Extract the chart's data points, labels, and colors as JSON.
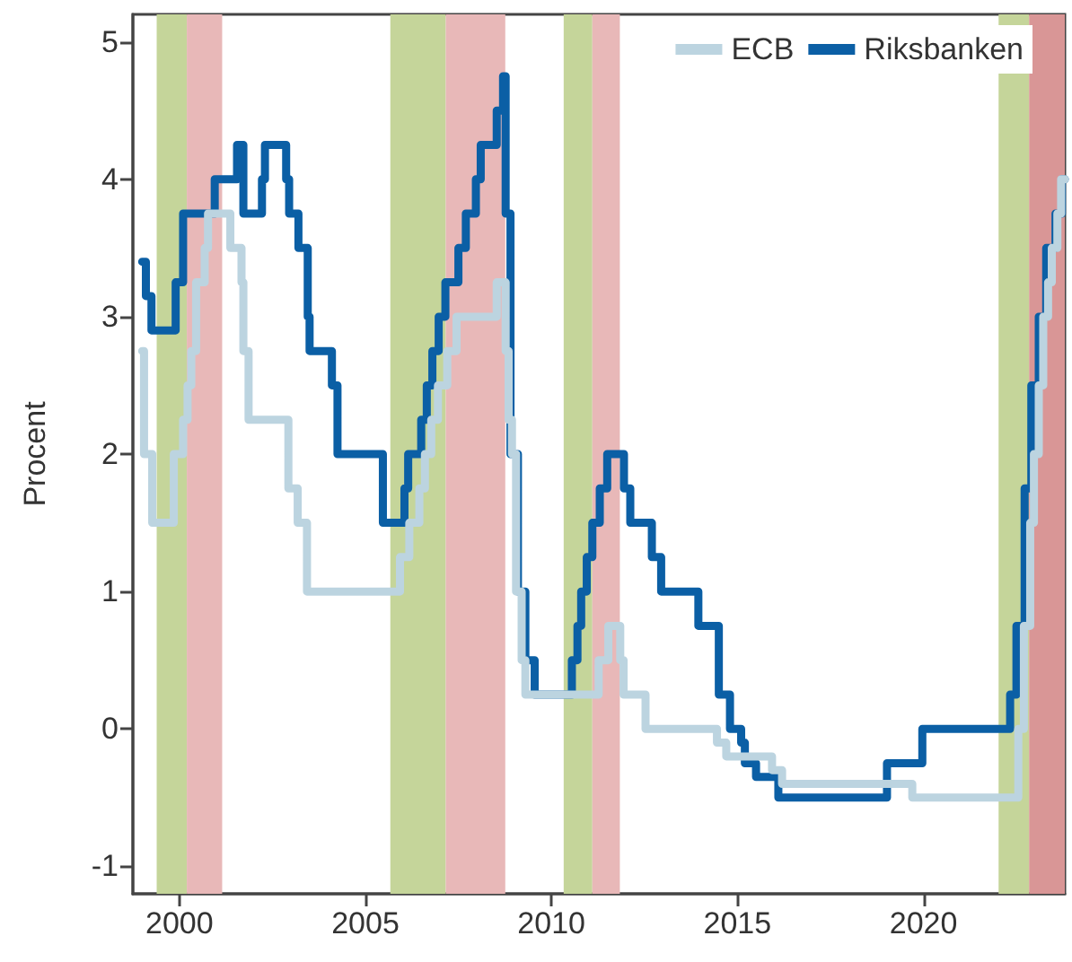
{
  "chart_data": {
    "type": "step",
    "ylabel": "Procent",
    "xlim": [
      1998.75,
      2023.8
    ],
    "xticks": [
      2000,
      2005,
      2010,
      2015,
      2020
    ],
    "ylim": [
      -1.2,
      5.2
    ],
    "yticks": [
      -1,
      0,
      1,
      2,
      3,
      4,
      5
    ],
    "grid": false,
    "legend": "top right",
    "bands": [
      {
        "axis": "x",
        "from": 1999.39,
        "to": 2000.2,
        "color": "#c5d59a"
      },
      {
        "axis": "x",
        "from": 2000.2,
        "to": 2001.15,
        "color": "#e8b8b8"
      },
      {
        "axis": "x",
        "from": 2005.67,
        "to": 2007.16,
        "color": "#c5d59a"
      },
      {
        "axis": "x",
        "from": 2007.16,
        "to": 2008.76,
        "color": "#e8b8b8"
      },
      {
        "axis": "x",
        "from": 2010.33,
        "to": 2011.1,
        "color": "#c5d59a"
      },
      {
        "axis": "x",
        "from": 2011.1,
        "to": 2011.84,
        "color": "#e8b8b8"
      },
      {
        "axis": "x",
        "from": 2022.02,
        "to": 2022.84,
        "color": "#c5d59a"
      },
      {
        "axis": "x",
        "from": 2022.84,
        "to": 2023.8,
        "color": "#d99696"
      }
    ],
    "series": [
      {
        "name": "ECB",
        "color": "#bcd4e0",
        "x": [
          1999.0,
          1999.05,
          1999.27,
          1999.85,
          2000.1,
          2000.22,
          2000.32,
          2000.45,
          2000.68,
          2000.77,
          2001.37,
          2001.67,
          2001.72,
          2001.86,
          2002.93,
          2003.18,
          2003.43,
          2005.93,
          2006.18,
          2006.45,
          2006.6,
          2006.77,
          2006.95,
          2007.2,
          2007.45,
          2008.53,
          2008.77,
          2008.85,
          2008.94,
          2009.05,
          2009.2,
          2009.3,
          2011.27,
          2011.53,
          2011.85,
          2011.94,
          2012.53,
          2014.45,
          2014.7,
          2015.93,
          2016.2,
          2019.7,
          2022.55,
          2022.7,
          2022.87,
          2022.97,
          2023.1,
          2023.22,
          2023.35,
          2023.45,
          2023.6,
          2023.7,
          2023.8
        ],
        "values": [
          2.75,
          2.0,
          1.5,
          2.0,
          2.25,
          2.5,
          2.75,
          3.25,
          3.5,
          3.75,
          3.5,
          3.25,
          2.75,
          2.25,
          1.75,
          1.5,
          1.0,
          1.25,
          1.5,
          1.75,
          2.0,
          2.25,
          2.5,
          2.75,
          3.0,
          3.25,
          2.75,
          2.25,
          2.0,
          1.0,
          0.5,
          0.25,
          0.5,
          0.75,
          0.5,
          0.25,
          0.0,
          -0.1,
          -0.2,
          -0.3,
          -0.4,
          -0.5,
          0.0,
          0.75,
          1.5,
          2.0,
          2.5,
          3.0,
          3.25,
          3.5,
          3.75,
          4.0,
          4.0
        ]
      },
      {
        "name": "Riksbanken",
        "color": "#0b5fa5",
        "x": [
          1999.0,
          1999.1,
          1999.25,
          1999.9,
          2000.1,
          2000.95,
          2001.55,
          2001.72,
          2002.22,
          2002.3,
          2002.87,
          2002.95,
          2003.2,
          2003.45,
          2003.5,
          2004.1,
          2004.25,
          2005.47,
          2006.05,
          2006.15,
          2006.5,
          2006.65,
          2006.8,
          2006.97,
          2007.15,
          2007.5,
          2007.7,
          2007.97,
          2008.1,
          2008.53,
          2008.7,
          2008.77,
          2008.9,
          2009.1,
          2009.3,
          2009.55,
          2010.55,
          2010.7,
          2010.8,
          2010.95,
          2011.1,
          2011.3,
          2011.5,
          2011.95,
          2012.12,
          2012.7,
          2012.95,
          2013.95,
          2014.5,
          2014.8,
          2015.1,
          2015.2,
          2015.5,
          2016.1,
          2019.02,
          2019.97,
          2022.33,
          2022.5,
          2022.72,
          2022.9,
          2023.1,
          2023.3,
          2023.55,
          2023.72,
          2023.8
        ],
        "values": [
          3.4,
          3.15,
          2.9,
          3.25,
          3.75,
          4.0,
          4.25,
          3.75,
          4.0,
          4.25,
          4.0,
          3.75,
          3.5,
          3.0,
          2.75,
          2.5,
          2.0,
          1.5,
          1.75,
          2.0,
          2.25,
          2.5,
          2.75,
          3.0,
          3.25,
          3.5,
          3.75,
          4.0,
          4.25,
          4.5,
          4.75,
          3.75,
          2.0,
          1.0,
          0.5,
          0.25,
          0.5,
          0.75,
          1.0,
          1.25,
          1.5,
          1.75,
          2.0,
          1.75,
          1.5,
          1.25,
          1.0,
          0.75,
          0.25,
          0.0,
          -0.1,
          -0.25,
          -0.35,
          -0.5,
          -0.25,
          0.0,
          0.25,
          0.75,
          1.75,
          2.5,
          3.0,
          3.5,
          3.75,
          4.0,
          4.0
        ]
      }
    ]
  }
}
